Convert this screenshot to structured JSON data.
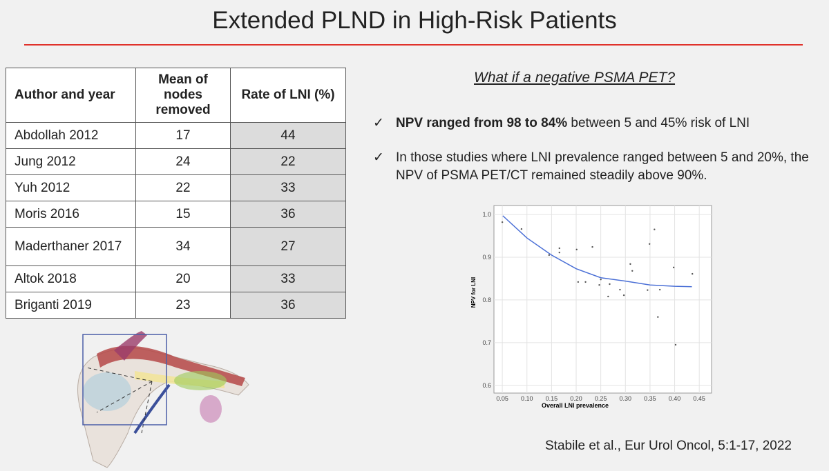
{
  "title": "Extended PLND in High-Risk Patients",
  "table": {
    "header": [
      "Author and year",
      "Mean  of nodes removed",
      "Rate of LNI (%)"
    ],
    "rows": [
      [
        "Abdollah 2012",
        17,
        44
      ],
      [
        "Jung 2012",
        24,
        22
      ],
      [
        "Yuh 2012",
        22,
        33
      ],
      [
        "Moris 2016",
        15,
        36
      ],
      [
        "Maderthaner 2017",
        34,
        27
      ],
      [
        "Altok 2018",
        20,
        33
      ],
      [
        "Briganti 2019",
        23,
        36
      ]
    ]
  },
  "question": "What if a negative PSMA PET?",
  "bullets": [
    {
      "bold": "NPV ranged from 98 to 84%",
      "text": " between 5 and 45% risk of LNI"
    },
    {
      "text": "In those studies where LNI prevalence ranged between 5 and 20%, the NPV of PSMA PET/CT remained steadily above 90%."
    }
  ],
  "citation": "Stabile et al., Eur Urol Oncol, 5:1-17, 2022",
  "chart_data": {
    "type": "scatter",
    "x_label": "Overall LNI prevalence",
    "y_label": "NPV for LNI",
    "x": [
      0.05,
      0.089,
      0.145,
      0.166,
      0.166,
      0.201,
      0.204,
      0.219,
      0.233,
      0.247,
      0.25,
      0.265,
      0.268,
      0.289,
      0.297,
      0.31,
      0.314,
      0.345,
      0.349,
      0.359,
      0.366,
      0.37,
      0.398,
      0.402,
      0.436
    ],
    "values": [
      0.982,
      0.966,
      0.905,
      0.921,
      0.911,
      0.918,
      0.842,
      0.842,
      0.924,
      0.835,
      0.848,
      0.808,
      0.837,
      0.824,
      0.811,
      0.884,
      0.868,
      0.823,
      0.931,
      0.965,
      0.76,
      0.824,
      0.876,
      0.695,
      0.861
    ],
    "color": "#555555",
    "trend": {
      "x": [
        0.051,
        0.1,
        0.15,
        0.2,
        0.25,
        0.3,
        0.35,
        0.4,
        0.435
      ],
      "values": [
        0.997,
        0.945,
        0.905,
        0.873,
        0.852,
        0.844,
        0.835,
        0.832,
        0.831
      ],
      "color": "#4a6fd6"
    },
    "xlim": [
      0.033,
      0.475
    ],
    "ylim": [
      0.582,
      1.021
    ],
    "xticks": [
      0.05,
      {
        "value": 0.1,
        "label": "0.10"
      },
      0.15,
      {
        "value": 0.2,
        "label": "0.20"
      },
      0.25,
      {
        "value": 0.3,
        "label": "0.30"
      },
      0.35,
      {
        "value": 0.4,
        "label": "0.40"
      },
      0.45
    ],
    "yticks": [
      0.6,
      0.7,
      0.8,
      0.9,
      {
        "value": 1,
        "label": "1.0"
      }
    ],
    "grid": true
  }
}
